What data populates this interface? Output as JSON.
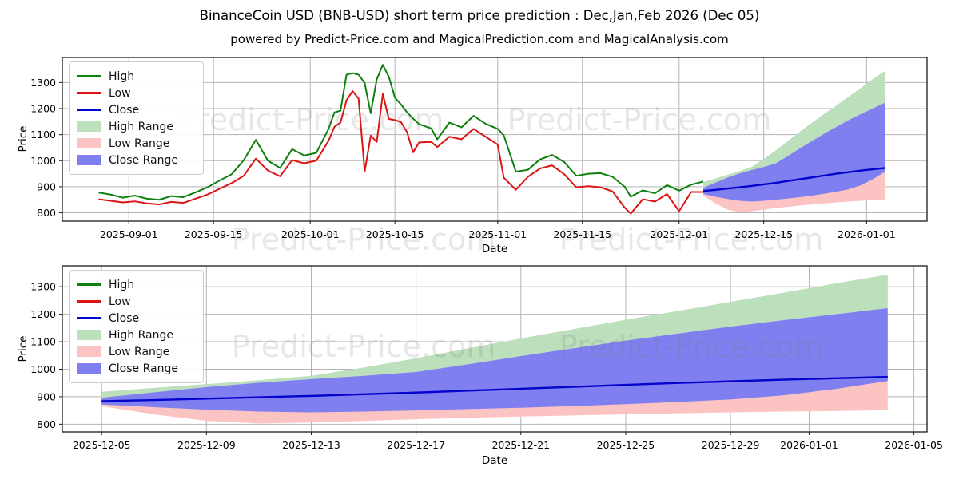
{
  "figure": {
    "title": "BinanceCoin USD (BNB-USD) short term price prediction : Dec,Jan,Feb 2026 (Dec 05)",
    "subtitle": "powered by Predict-Price.com and MagicalPrediction.com and MagicalAnalysis.com",
    "background": "#ffffff"
  },
  "watermark": {
    "text": "Predict-Price.com",
    "color": "#787878",
    "opacity": 0.18
  },
  "colors": {
    "high_line": "#0e800e",
    "low_line": "#dd1414",
    "close_line": "#0404cc",
    "high_range_fill": "#bcdfbc",
    "low_range_fill": "#fcc3c3",
    "close_range_fill": "#7f7ff0",
    "grid": "#b5b5b5",
    "frame": "#1a1a1a"
  },
  "legend": [
    {
      "label": "High",
      "swatch": "line",
      "color": "#0e800e"
    },
    {
      "label": "Low",
      "swatch": "line",
      "color": "#dd1414"
    },
    {
      "label": "Close",
      "swatch": "line",
      "color": "#0404cc"
    },
    {
      "label": "High Range",
      "swatch": "patch",
      "color": "#bcdfbc"
    },
    {
      "label": "Low Range",
      "swatch": "patch",
      "color": "#fcc3c3"
    },
    {
      "label": "Close Range",
      "swatch": "patch",
      "color": "#7f7ff0"
    }
  ],
  "chart_data": [
    {
      "type": "line",
      "name": "history with forecast ranges",
      "ylabel": "Price",
      "xlabel": "Date",
      "grid": true,
      "legend_position": "upper left",
      "ylim": [
        768,
        1396
      ],
      "xlim": [
        "2025-08-21",
        "2026-01-11"
      ],
      "yticks": [
        800,
        900,
        1000,
        1100,
        1200,
        1300
      ],
      "xticks": [
        "2025-09-01",
        "2025-09-15",
        "2025-10-01",
        "2025-10-15",
        "2025-11-01",
        "2025-11-15",
        "2025-12-01",
        "2025-12-15",
        "2026-01-01"
      ]
    },
    {
      "type": "area",
      "name": "forecast detail",
      "ylabel": "Price",
      "xlabel": "Date",
      "grid": true,
      "legend_position": "upper left",
      "ylim": [
        772,
        1376
      ],
      "xlim": [
        "2025-12-03T12:00:00",
        "2026-01-05T12:00:00"
      ],
      "yticks": [
        800,
        900,
        1000,
        1100,
        1200,
        1300
      ],
      "xticks": [
        "2025-12-05",
        "2025-12-09",
        "2025-12-13",
        "2025-12-17",
        "2025-12-21",
        "2025-12-25",
        "2025-12-29",
        "2026-01-01",
        "2026-01-05"
      ]
    }
  ],
  "history": {
    "dates": [
      "2025-08-27",
      "2025-08-29",
      "2025-08-31",
      "2025-09-02",
      "2025-09-04",
      "2025-09-06",
      "2025-09-08",
      "2025-09-10",
      "2025-09-12",
      "2025-09-14",
      "2025-09-16",
      "2025-09-18",
      "2025-09-20",
      "2025-09-22",
      "2025-09-24",
      "2025-09-26",
      "2025-09-28",
      "2025-09-30",
      "2025-10-02",
      "2025-10-04",
      "2025-10-05",
      "2025-10-06",
      "2025-10-07",
      "2025-10-08",
      "2025-10-09",
      "2025-10-10",
      "2025-10-11",
      "2025-10-12",
      "2025-10-13",
      "2025-10-14",
      "2025-10-15",
      "2025-10-16",
      "2025-10-17",
      "2025-10-18",
      "2025-10-19",
      "2025-10-21",
      "2025-10-22",
      "2025-10-24",
      "2025-10-26",
      "2025-10-28",
      "2025-10-30",
      "2025-11-01",
      "2025-11-02",
      "2025-11-04",
      "2025-11-06",
      "2025-11-08",
      "2025-11-10",
      "2025-11-12",
      "2025-11-14",
      "2025-11-16",
      "2025-11-18",
      "2025-11-20",
      "2025-11-22",
      "2025-11-23",
      "2025-11-25",
      "2025-11-27",
      "2025-11-29",
      "2025-12-01",
      "2025-12-03",
      "2025-12-05"
    ],
    "high": [
      878,
      870,
      858,
      866,
      854,
      850,
      864,
      860,
      878,
      898,
      924,
      948,
      1002,
      1080,
      1000,
      972,
      1044,
      1020,
      1030,
      1120,
      1185,
      1192,
      1330,
      1336,
      1330,
      1298,
      1182,
      1312,
      1368,
      1322,
      1242,
      1216,
      1186,
      1162,
      1140,
      1124,
      1082,
      1146,
      1128,
      1172,
      1142,
      1122,
      1098,
      958,
      965,
      1005,
      1022,
      995,
      942,
      950,
      952,
      938,
      900,
      862,
      886,
      875,
      906,
      885,
      908,
      920
    ],
    "low": [
      852,
      846,
      840,
      844,
      836,
      832,
      842,
      838,
      854,
      870,
      892,
      914,
      942,
      1008,
      962,
      940,
      1002,
      990,
      1000,
      1075,
      1130,
      1146,
      1232,
      1267,
      1238,
      958,
      1096,
      1072,
      1256,
      1160,
      1156,
      1148,
      1110,
      1032,
      1070,
      1072,
      1052,
      1092,
      1082,
      1122,
      1092,
      1062,
      935,
      888,
      938,
      970,
      982,
      948,
      898,
      902,
      898,
      882,
      820,
      797,
      852,
      843,
      872,
      806,
      880,
      880
    ]
  },
  "forecast": {
    "dates": [
      "2025-12-05",
      "2025-12-07",
      "2025-12-09",
      "2025-12-11",
      "2025-12-13",
      "2025-12-15",
      "2025-12-17",
      "2025-12-19",
      "2025-12-21",
      "2025-12-23",
      "2025-12-25",
      "2025-12-27",
      "2025-12-29",
      "2025-12-31",
      "2026-01-02",
      "2026-01-04"
    ],
    "close": [
      884,
      888,
      893,
      898,
      903,
      909,
      915,
      922,
      929,
      936,
      943,
      950,
      956,
      962,
      967,
      972
    ],
    "high_range_upper": [
      918,
      932,
      946,
      960,
      976,
      1006,
      1040,
      1076,
      1112,
      1146,
      1180,
      1212,
      1245,
      1278,
      1312,
      1344
    ],
    "close_range_upper": [
      896,
      916,
      935,
      951,
      964,
      976,
      990,
      1018,
      1048,
      1076,
      1104,
      1130,
      1155,
      1178,
      1200,
      1222
    ],
    "close_range_lower": [
      872,
      862,
      853,
      846,
      843,
      846,
      850,
      855,
      860,
      866,
      873,
      881,
      890,
      905,
      928,
      957
    ],
    "low_range_upper": [
      876,
      868,
      861,
      856,
      855,
      858,
      862,
      867,
      872,
      878,
      885,
      893,
      902,
      918,
      940,
      963
    ],
    "low_range_lower": [
      866,
      836,
      812,
      803,
      806,
      812,
      818,
      823,
      828,
      832,
      836,
      840,
      843,
      846,
      848,
      851
    ]
  }
}
